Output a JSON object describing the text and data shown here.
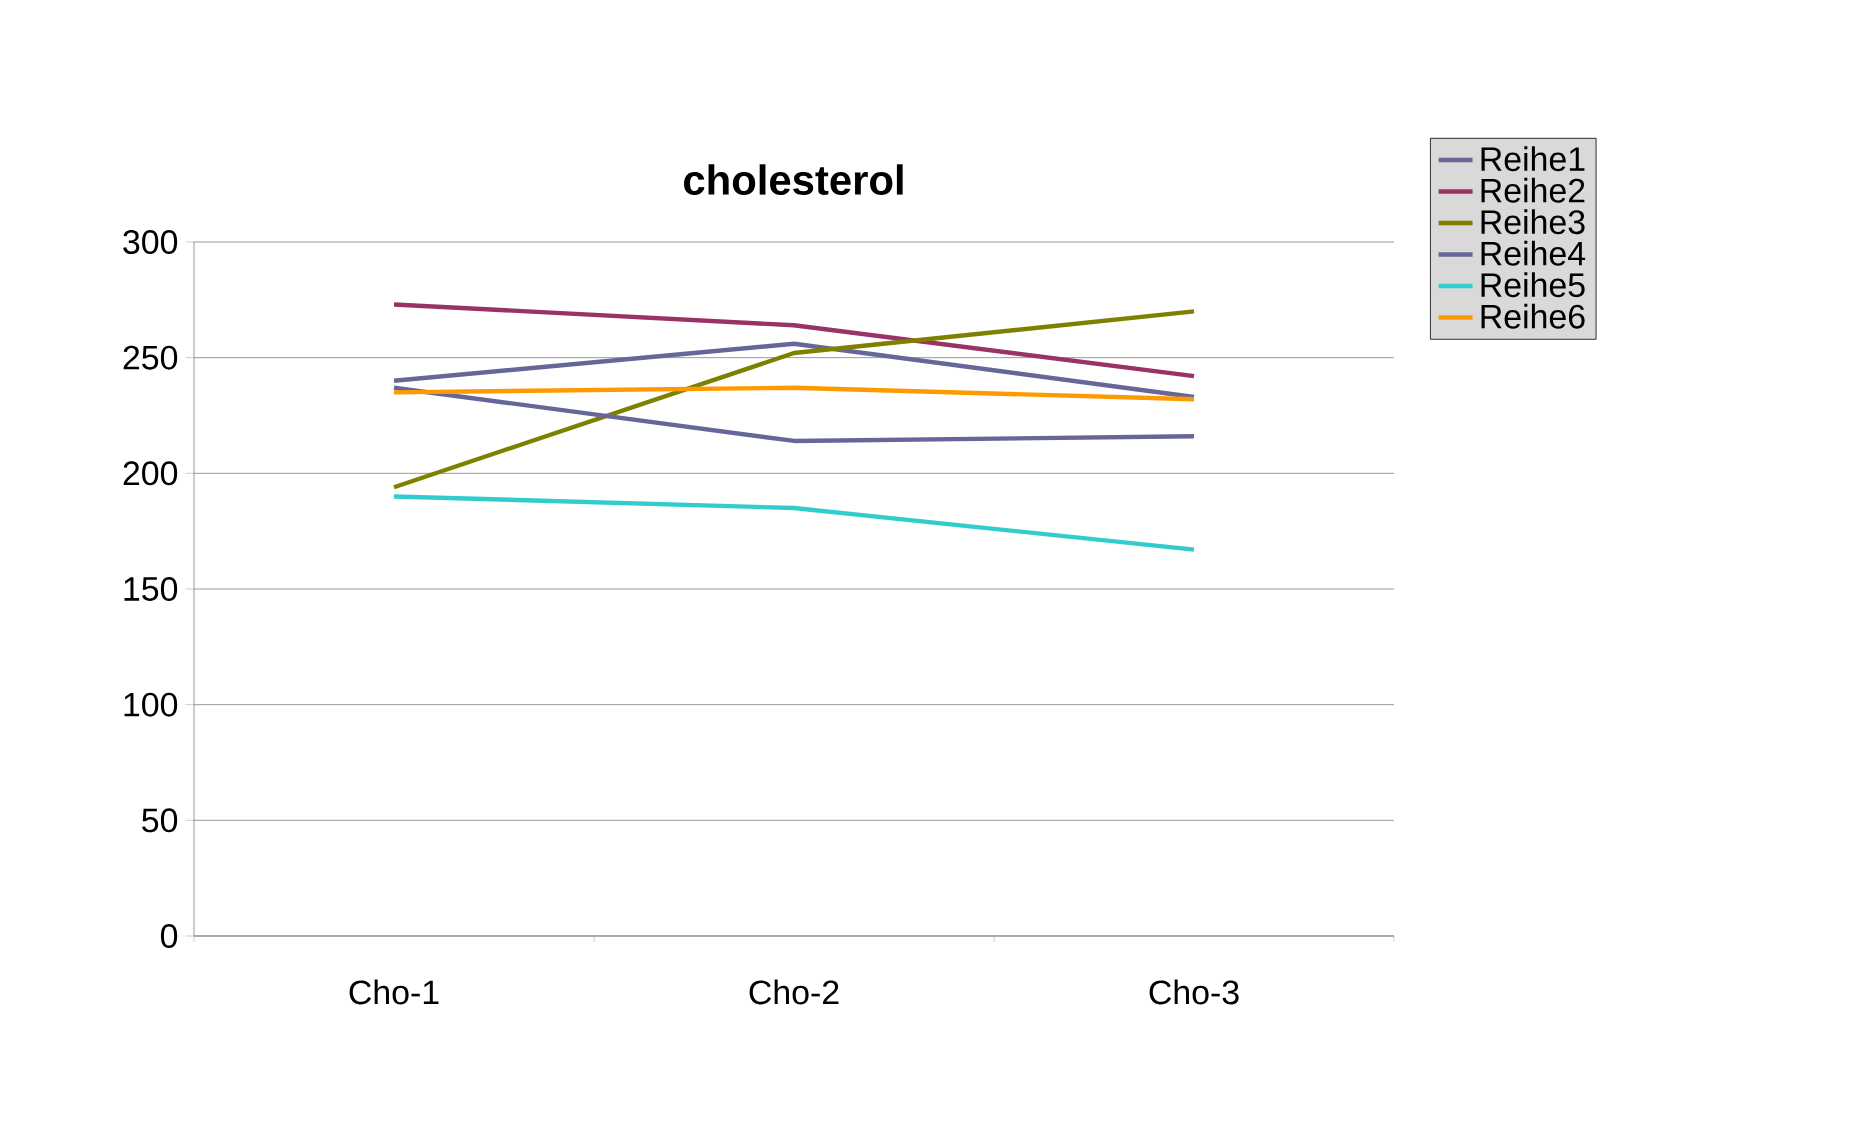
{
  "chart_data": {
    "type": "line",
    "title": "cholesterol",
    "categories": [
      "Cho-1",
      "Cho-2",
      "Cho-3"
    ],
    "series": [
      {
        "name": "Reihe1",
        "color": "#666699",
        "values": [
          240,
          256,
          233
        ]
      },
      {
        "name": "Reihe2",
        "color": "#993366",
        "values": [
          273,
          264,
          242
        ]
      },
      {
        "name": "Reihe3",
        "color": "#808000",
        "values": [
          194,
          252,
          270
        ]
      },
      {
        "name": "Reihe4",
        "color": "#666699",
        "values": [
          237,
          214,
          216
        ]
      },
      {
        "name": "Reihe5",
        "color": "#33cccc",
        "values": [
          190,
          185,
          167
        ]
      },
      {
        "name": "Reihe6",
        "color": "#ff9900",
        "values": [
          235,
          237,
          232
        ]
      }
    ],
    "ylim": [
      0,
      300
    ],
    "yticks": [
      0,
      50,
      100,
      150,
      200,
      250,
      300
    ],
    "grid": "y",
    "legend": "right",
    "marker": "none",
    "line_style": "solid"
  }
}
